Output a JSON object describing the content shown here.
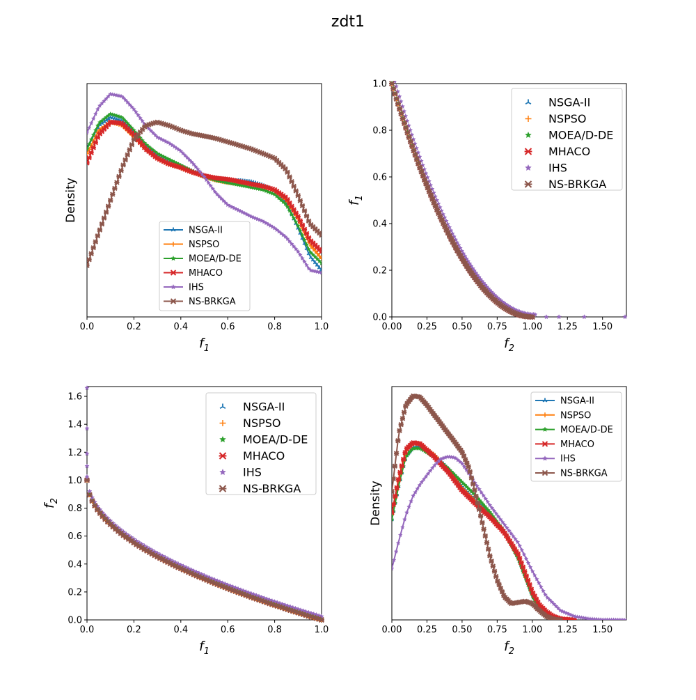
{
  "figure": {
    "title": "zdt1"
  },
  "legend_labels": [
    "NSGA-II",
    "NSPSO",
    "MOEA/D-DE",
    "MHACO",
    "IHS",
    "NS-BRKGA"
  ],
  "colors": {
    "NSGA-II": "#1f77b4",
    "NSPSO": "#ff7f0e",
    "MOEA/D-DE": "#2ca02c",
    "MHACO": "#d62728",
    "IHS": "#9467bd",
    "NS-BRKGA": "#8c564b"
  },
  "markers": {
    "NSGA-II": "tri",
    "NSPSO": "plus",
    "MOEA/D-DE": "star",
    "MHACO": "x",
    "IHS": "star",
    "NS-BRKGA": "x"
  },
  "chart_data": [
    {
      "id": "top-left",
      "type": "line",
      "xlabel": "f",
      "xlabel_sub": "1",
      "ylabel": "Density",
      "xlim": [
        0,
        1
      ],
      "ylim": [
        0,
        1
      ],
      "y_ticks_shown": false,
      "x_ticks": [
        "0.0",
        "0.2",
        "0.4",
        "0.6",
        "0.8",
        "1.0"
      ],
      "x_tick_values": [
        0,
        0.2,
        0.4,
        0.6,
        0.8,
        1.0
      ],
      "legend": "lower-center",
      "series": [
        {
          "name": "NSGA-II",
          "x": [
            0,
            0.05,
            0.1,
            0.15,
            0.2,
            0.25,
            0.3,
            0.35,
            0.4,
            0.45,
            0.5,
            0.55,
            0.6,
            0.65,
            0.7,
            0.75,
            0.8,
            0.85,
            0.9,
            0.95,
            1.0
          ],
          "y": [
            0.72,
            0.82,
            0.855,
            0.84,
            0.79,
            0.73,
            0.69,
            0.665,
            0.645,
            0.625,
            0.605,
            0.59,
            0.585,
            0.585,
            0.58,
            0.565,
            0.54,
            0.49,
            0.38,
            0.26,
            0.2
          ]
        },
        {
          "name": "NSPSO",
          "x": [
            0,
            0.05,
            0.1,
            0.15,
            0.2,
            0.25,
            0.3,
            0.35,
            0.4,
            0.45,
            0.5,
            0.55,
            0.6,
            0.65,
            0.7,
            0.75,
            0.8,
            0.85,
            0.9,
            0.95,
            1.0
          ],
          "y": [
            0.7,
            0.8,
            0.835,
            0.82,
            0.77,
            0.72,
            0.68,
            0.655,
            0.64,
            0.62,
            0.6,
            0.585,
            0.575,
            0.57,
            0.565,
            0.555,
            0.54,
            0.5,
            0.42,
            0.31,
            0.25
          ]
        },
        {
          "name": "MOEA/D-DE",
          "x": [
            0,
            0.05,
            0.1,
            0.15,
            0.2,
            0.25,
            0.3,
            0.35,
            0.4,
            0.45,
            0.5,
            0.55,
            0.6,
            0.65,
            0.7,
            0.75,
            0.8,
            0.85,
            0.9,
            0.95,
            1.0
          ],
          "y": [
            0.72,
            0.83,
            0.87,
            0.855,
            0.8,
            0.74,
            0.7,
            0.675,
            0.65,
            0.625,
            0.6,
            0.585,
            0.575,
            0.565,
            0.555,
            0.545,
            0.525,
            0.48,
            0.39,
            0.28,
            0.23
          ]
        },
        {
          "name": "MHACO",
          "x": [
            0,
            0.05,
            0.1,
            0.15,
            0.2,
            0.25,
            0.3,
            0.35,
            0.4,
            0.45,
            0.5,
            0.55,
            0.6,
            0.65,
            0.7,
            0.75,
            0.8,
            0.85,
            0.9,
            0.95,
            1.0
          ],
          "y": [
            0.66,
            0.78,
            0.835,
            0.83,
            0.78,
            0.72,
            0.68,
            0.655,
            0.64,
            0.62,
            0.605,
            0.595,
            0.59,
            0.58,
            0.57,
            0.56,
            0.545,
            0.51,
            0.43,
            0.33,
            0.28
          ]
        },
        {
          "name": "IHS",
          "x": [
            0,
            0.05,
            0.1,
            0.15,
            0.2,
            0.25,
            0.3,
            0.35,
            0.4,
            0.45,
            0.5,
            0.55,
            0.6,
            0.65,
            0.7,
            0.75,
            0.8,
            0.85,
            0.9,
            0.95,
            1.0
          ],
          "y": [
            0.79,
            0.9,
            0.955,
            0.945,
            0.89,
            0.82,
            0.77,
            0.745,
            0.71,
            0.66,
            0.6,
            0.53,
            0.48,
            0.455,
            0.43,
            0.41,
            0.38,
            0.34,
            0.28,
            0.2,
            0.19
          ]
        },
        {
          "name": "NS-BRKGA",
          "x": [
            0,
            0.05,
            0.1,
            0.15,
            0.2,
            0.25,
            0.3,
            0.35,
            0.4,
            0.45,
            0.5,
            0.55,
            0.6,
            0.65,
            0.7,
            0.75,
            0.8,
            0.85,
            0.9,
            0.95,
            1.0
          ],
          "y": [
            0.22,
            0.36,
            0.5,
            0.64,
            0.76,
            0.82,
            0.835,
            0.82,
            0.8,
            0.785,
            0.775,
            0.765,
            0.75,
            0.735,
            0.72,
            0.7,
            0.68,
            0.63,
            0.52,
            0.4,
            0.35
          ]
        }
      ]
    },
    {
      "id": "top-right",
      "type": "scatter",
      "xlabel": "f",
      "xlabel_sub": "2",
      "ylabel": "f",
      "ylabel_sub": "1",
      "xlim": [
        0,
        1.67
      ],
      "ylim": [
        0,
        1.0
      ],
      "x_ticks": [
        "0.00",
        "0.25",
        "0.50",
        "0.75",
        "1.00",
        "1.25",
        "1.50"
      ],
      "x_tick_values": [
        0,
        0.25,
        0.5,
        0.75,
        1.0,
        1.25,
        1.5
      ],
      "y_ticks": [
        "0.0",
        "0.2",
        "0.4",
        "0.6",
        "0.8",
        "1.0"
      ],
      "y_tick_values": [
        0,
        0.2,
        0.4,
        0.6,
        0.8,
        1.0
      ],
      "legend": "upper-right",
      "front": "f1 = (1 - f2)^2",
      "ihs_outliers": [
        [
          1.0,
          0.0
        ],
        [
          1.1,
          0.0
        ],
        [
          1.19,
          0.0
        ],
        [
          1.37,
          0.0
        ],
        [
          1.66,
          0.0
        ]
      ]
    },
    {
      "id": "bottom-left",
      "type": "scatter",
      "xlabel": "f",
      "xlabel_sub": "1",
      "ylabel": "f",
      "ylabel_sub": "2",
      "xlim": [
        0,
        1.0
      ],
      "ylim": [
        0,
        1.67
      ],
      "x_ticks": [
        "0.0",
        "0.2",
        "0.4",
        "0.6",
        "0.8",
        "1.0"
      ],
      "x_tick_values": [
        0,
        0.2,
        0.4,
        0.6,
        0.8,
        1.0
      ],
      "y_ticks": [
        "0.0",
        "0.2",
        "0.4",
        "0.6",
        "0.8",
        "1.0",
        "1.2",
        "1.4",
        "1.6"
      ],
      "y_tick_values": [
        0,
        0.2,
        0.4,
        0.6,
        0.8,
        1.0,
        1.2,
        1.4,
        1.6
      ],
      "legend": "upper-right",
      "front": "f2 = 1 - sqrt(f1)",
      "ihs_outliers": [
        [
          0.0,
          1.66
        ],
        [
          0.0,
          1.37
        ],
        [
          0.0,
          1.19
        ],
        [
          0.0,
          1.1
        ],
        [
          0.0,
          1.0
        ]
      ]
    },
    {
      "id": "bottom-right",
      "type": "line",
      "xlabel": "f",
      "xlabel_sub": "2",
      "ylabel": "Density",
      "xlim": [
        0,
        1.67
      ],
      "ylim": [
        0,
        1
      ],
      "y_ticks_shown": false,
      "x_ticks": [
        "0.00",
        "0.25",
        "0.50",
        "0.75",
        "1.00",
        "1.25",
        "1.50"
      ],
      "x_tick_values": [
        0,
        0.25,
        0.5,
        0.75,
        1.0,
        1.25,
        1.5
      ],
      "legend": "upper-right",
      "series": [
        {
          "name": "NSGA-II",
          "x": [
            0,
            0.05,
            0.1,
            0.15,
            0.2,
            0.3,
            0.4,
            0.5,
            0.6,
            0.7,
            0.8,
            0.9,
            0.95,
            1.0,
            1.05,
            1.1,
            1.15,
            1.2,
            1.3
          ],
          "y": [
            0.43,
            0.58,
            0.7,
            0.74,
            0.745,
            0.71,
            0.65,
            0.57,
            0.51,
            0.45,
            0.38,
            0.27,
            0.19,
            0.11,
            0.06,
            0.03,
            0.01,
            0.003,
            0.0
          ]
        },
        {
          "name": "NSPSO",
          "x": [
            0,
            0.05,
            0.1,
            0.15,
            0.2,
            0.3,
            0.4,
            0.5,
            0.6,
            0.7,
            0.8,
            0.9,
            0.95,
            1.0,
            1.05,
            1.1,
            1.15,
            1.2,
            1.3
          ],
          "y": [
            0.45,
            0.6,
            0.72,
            0.755,
            0.755,
            0.71,
            0.645,
            0.565,
            0.505,
            0.445,
            0.375,
            0.27,
            0.19,
            0.11,
            0.06,
            0.03,
            0.012,
            0.004,
            0.0
          ]
        },
        {
          "name": "MOEA/D-DE",
          "x": [
            0,
            0.05,
            0.1,
            0.15,
            0.2,
            0.3,
            0.4,
            0.5,
            0.6,
            0.7,
            0.8,
            0.9,
            0.95,
            1.0,
            1.05,
            1.1,
            1.15,
            1.2,
            1.3
          ],
          "y": [
            0.43,
            0.58,
            0.7,
            0.735,
            0.735,
            0.7,
            0.65,
            0.59,
            0.53,
            0.46,
            0.38,
            0.26,
            0.18,
            0.1,
            0.05,
            0.02,
            0.008,
            0.002,
            0.0
          ]
        },
        {
          "name": "MHACO",
          "x": [
            0,
            0.05,
            0.1,
            0.15,
            0.2,
            0.3,
            0.4,
            0.5,
            0.6,
            0.7,
            0.8,
            0.9,
            0.95,
            1.0,
            1.05,
            1.1,
            1.15,
            1.2,
            1.3
          ],
          "y": [
            0.46,
            0.61,
            0.73,
            0.76,
            0.755,
            0.7,
            0.635,
            0.555,
            0.495,
            0.44,
            0.375,
            0.28,
            0.2,
            0.12,
            0.065,
            0.035,
            0.015,
            0.005,
            0.0
          ]
        },
        {
          "name": "IHS",
          "x": [
            0,
            0.05,
            0.1,
            0.15,
            0.2,
            0.25,
            0.3,
            0.35,
            0.4,
            0.45,
            0.5,
            0.6,
            0.7,
            0.8,
            0.9,
            1.0,
            1.1,
            1.2,
            1.3,
            1.4,
            1.5,
            1.67
          ],
          "y": [
            0.22,
            0.34,
            0.45,
            0.53,
            0.58,
            0.62,
            0.66,
            0.69,
            0.7,
            0.695,
            0.67,
            0.58,
            0.49,
            0.41,
            0.33,
            0.21,
            0.1,
            0.04,
            0.015,
            0.005,
            0.001,
            0.0
          ]
        },
        {
          "name": "NS-BRKGA",
          "x": [
            0,
            0.05,
            0.1,
            0.15,
            0.2,
            0.25,
            0.3,
            0.4,
            0.5,
            0.55,
            0.6,
            0.65,
            0.7,
            0.75,
            0.8,
            0.85,
            0.9,
            0.95,
            1.0,
            1.05,
            1.1,
            1.15,
            1.2
          ],
          "y": [
            0.55,
            0.8,
            0.92,
            0.96,
            0.955,
            0.92,
            0.88,
            0.8,
            0.72,
            0.65,
            0.53,
            0.4,
            0.27,
            0.17,
            0.1,
            0.07,
            0.075,
            0.08,
            0.07,
            0.04,
            0.015,
            0.004,
            0.0
          ]
        }
      ]
    }
  ]
}
